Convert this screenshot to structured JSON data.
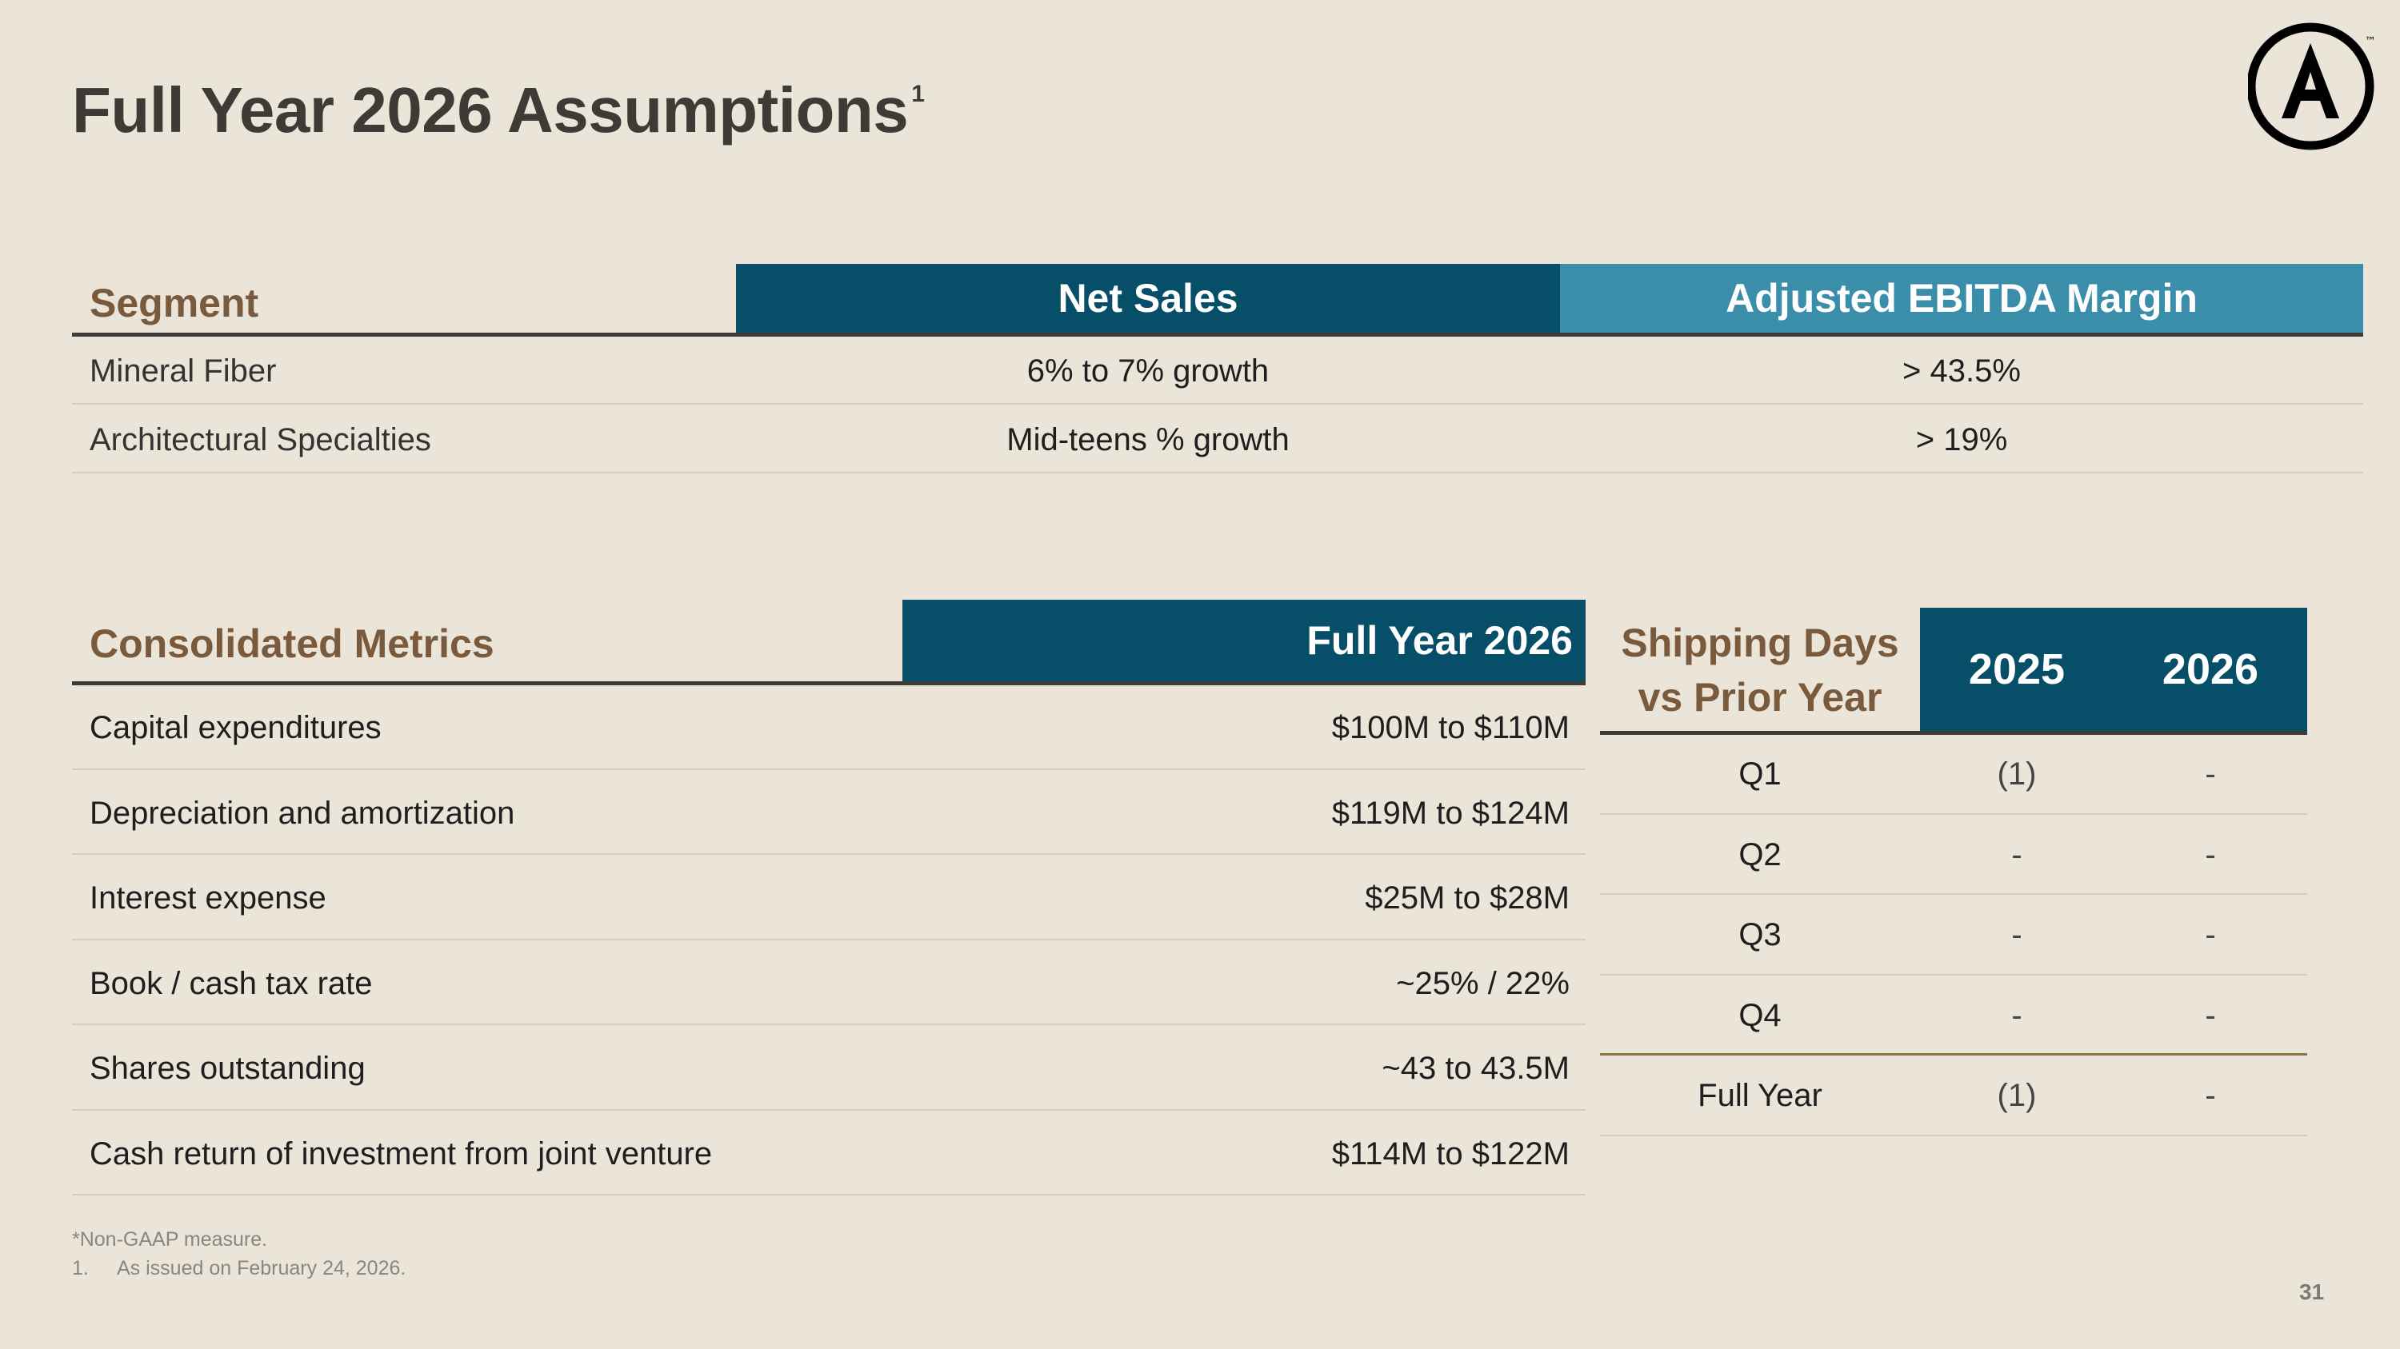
{
  "title": "Full Year 2026 Assumptions",
  "title_sup": "1",
  "logo": {
    "icon": "brand-circle-a-logo",
    "letter": "A",
    "tm": "™"
  },
  "segment_table": {
    "headers": [
      "Segment",
      "Net Sales",
      "Adjusted EBITDA Margin"
    ],
    "rows": [
      {
        "segment": "Mineral Fiber",
        "net_sales": "6% to 7% growth",
        "ebitda_margin": "> 43.5%"
      },
      {
        "segment": "Architectural Specialties",
        "net_sales": "Mid-teens % growth",
        "ebitda_margin": "> 19%"
      }
    ]
  },
  "consolidated_table": {
    "headers": [
      "Consolidated Metrics",
      "Full Year 2026"
    ],
    "rows": [
      {
        "metric": "Capital expenditures",
        "value": "$100M to $110M"
      },
      {
        "metric": "Depreciation and amortization",
        "value": "$119M to $124M"
      },
      {
        "metric": "Interest expense",
        "value": "$25M to $28M"
      },
      {
        "metric": "Book / cash tax rate",
        "value": "~25% / 22%"
      },
      {
        "metric": "Shares outstanding",
        "value": "~43 to 43.5M"
      },
      {
        "metric": "Cash return of investment from joint venture",
        "value": "$114M to $122M"
      }
    ]
  },
  "shipping_table": {
    "header_line1": "Shipping Days",
    "header_line2": "vs Prior Year",
    "years": [
      "2025",
      "2026"
    ],
    "rows": [
      {
        "period": "Q1",
        "y2025": "(1)",
        "y2026": "-"
      },
      {
        "period": "Q2",
        "y2025": "-",
        "y2026": "-"
      },
      {
        "period": "Q3",
        "y2025": "-",
        "y2026": "-"
      },
      {
        "period": "Q4",
        "y2025": "-",
        "y2026": "-"
      },
      {
        "period": "Full Year",
        "y2025": "(1)",
        "y2026": "-"
      }
    ]
  },
  "footnotes": {
    "non_gaap": "*Non-GAAP measure.",
    "note1_num": "1.",
    "note1_text": "As issued on February 24, 2026."
  },
  "page_number": "31",
  "colors": {
    "background": "#ebe4d9",
    "navy": "#074f69",
    "teal": "#3a8ea9",
    "brown": "#7a5a3c"
  }
}
